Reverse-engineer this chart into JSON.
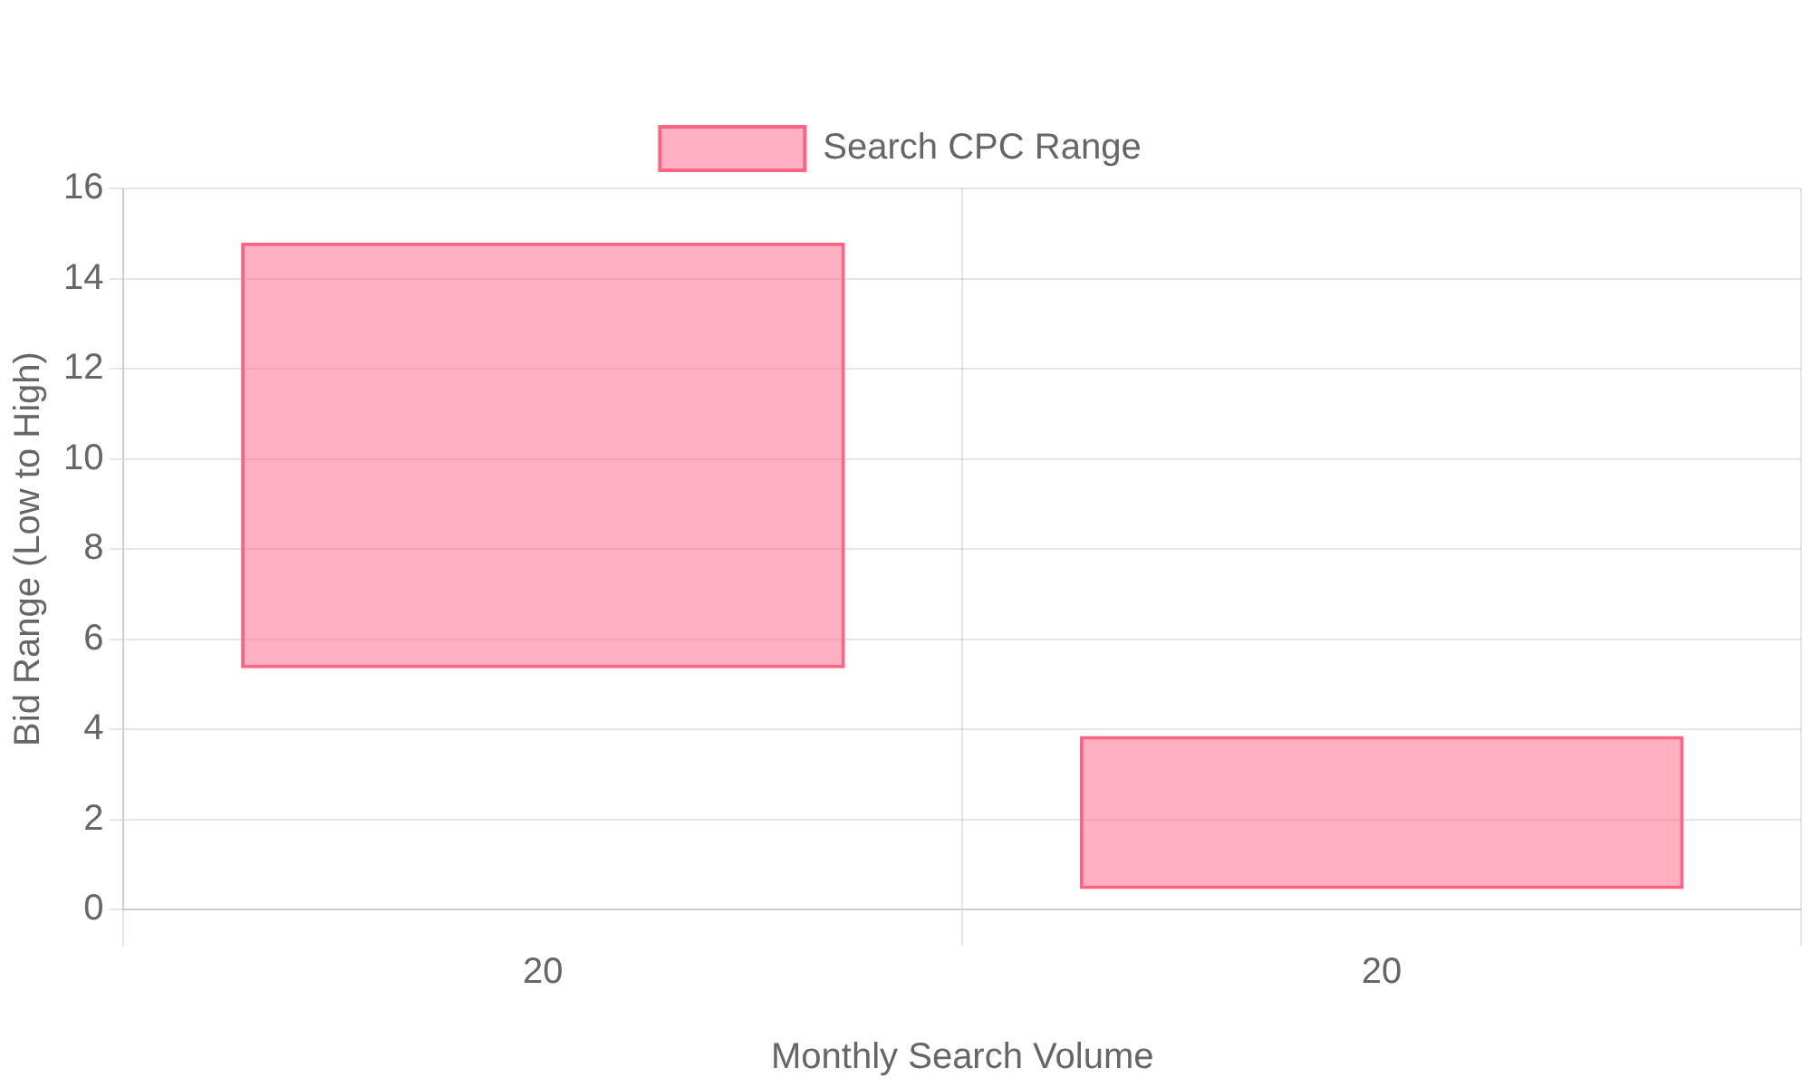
{
  "chart_data": {
    "type": "bar",
    "xlabel": "Monthly Search Volume",
    "ylabel": "Bid Range (Low to High)",
    "categories": [
      "20",
      "20"
    ],
    "series": [
      {
        "name": "Search CPC Range",
        "color": "#ff6384",
        "values": [
          9.45,
          3.4
        ],
        "base": [
          5.35,
          0.45
        ]
      }
    ],
    "ylim": [
      0,
      16
    ],
    "yticks": [
      0,
      2,
      4,
      6,
      8,
      10,
      12,
      14,
      16
    ],
    "grid": true,
    "legend": "top"
  }
}
